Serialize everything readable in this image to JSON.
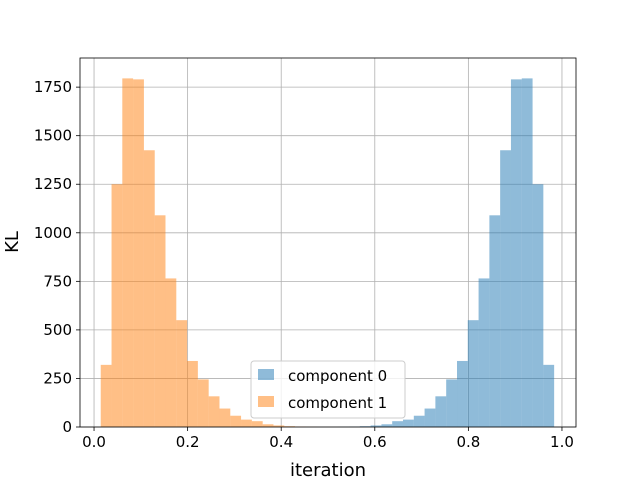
{
  "chart_data": {
    "type": "bar",
    "title": "",
    "xlabel": "iteration",
    "ylabel": "KL",
    "xlim": [
      -0.03,
      1.03
    ],
    "ylim": [
      0,
      1900
    ],
    "x_ticks": [
      0.0,
      0.2,
      0.4,
      0.6,
      0.8,
      1.0
    ],
    "x_tick_labels": [
      "0.0",
      "0.2",
      "0.4",
      "0.6",
      "0.8",
      "1.0"
    ],
    "y_ticks": [
      0,
      250,
      500,
      750,
      1000,
      1250,
      1500,
      1750
    ],
    "y_tick_labels": [
      "0",
      "250",
      "500",
      "750",
      "1000",
      "1250",
      "1500",
      "1750"
    ],
    "grid": true,
    "legend_position": "lower-center",
    "bin_edges": [
      0.0143,
      0.0374,
      0.0604,
      0.0835,
      0.1066,
      0.1297,
      0.1527,
      0.1758,
      0.1989,
      0.2219,
      0.245,
      0.2681,
      0.2912,
      0.3142,
      0.3373,
      0.3604,
      0.3834,
      0.4065,
      0.4296,
      0.4527,
      0.4757,
      0.4988,
      0.5219,
      0.5449,
      0.568,
      0.5911,
      0.6142,
      0.6372,
      0.6603,
      0.6834,
      0.7064,
      0.7295,
      0.7526,
      0.7757,
      0.7987,
      0.8218,
      0.8449,
      0.8679,
      0.891,
      0.9141,
      0.9372,
      0.9602,
      0.9833
    ],
    "series": [
      {
        "name": "component 0",
        "color": "#1f77b4",
        "alpha": 0.5,
        "values": [
          0,
          0,
          0,
          0,
          0,
          0,
          0,
          0,
          0,
          0,
          0,
          0,
          0,
          0,
          0,
          0,
          0,
          0,
          0,
          0,
          0,
          0,
          1,
          2,
          4,
          8,
          14,
          30,
          38,
          58,
          95,
          158,
          245,
          340,
          550,
          765,
          1090,
          1425,
          1790,
          1795,
          1250,
          320
        ]
      },
      {
        "name": "component 1",
        "color": "#ff7f0e",
        "alpha": 0.5,
        "values": [
          320,
          1250,
          1795,
          1790,
          1425,
          1090,
          765,
          550,
          340,
          245,
          158,
          95,
          58,
          38,
          30,
          14,
          8,
          4,
          2,
          1,
          0,
          0,
          0,
          0,
          0,
          0,
          0,
          0,
          0,
          0,
          0,
          0,
          0,
          0,
          0,
          0,
          0,
          0,
          0,
          0,
          0,
          0
        ]
      }
    ]
  }
}
